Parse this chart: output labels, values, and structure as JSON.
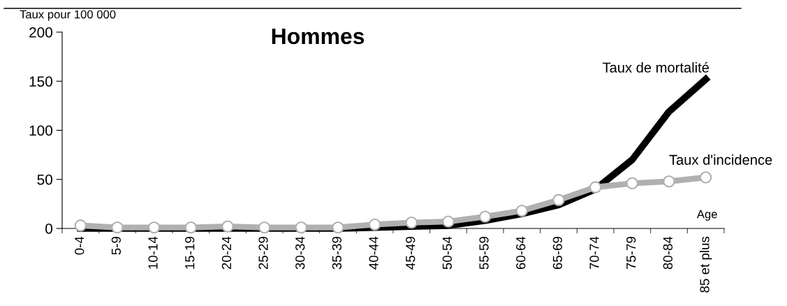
{
  "chart_data": {
    "type": "line",
    "title": "Hommes",
    "ylabel": "Taux pour 100 000",
    "xlabel": "Age",
    "categories": [
      "0-4",
      "5-9",
      "10-14",
      "15-19",
      "20-24",
      "25-29",
      "30-34",
      "35-39",
      "40-44",
      "45-49",
      "50-54",
      "55-59",
      "60-64",
      "65-69",
      "70-74",
      "75-79",
      "80-84",
      "85 et plus"
    ],
    "series": [
      {
        "name": "Taux de mortalité",
        "color": "#000000",
        "marker": "none",
        "values": [
          0,
          0,
          0,
          0,
          0,
          0,
          0,
          0,
          1,
          2,
          3,
          8,
          15,
          24,
          40,
          70,
          119,
          152
        ]
      },
      {
        "name": "Taux d'incidence",
        "color": "#b0b0b0",
        "marker": "circle",
        "values": [
          3,
          1,
          1,
          1,
          2,
          1,
          1,
          1,
          4,
          6,
          7,
          12,
          18,
          29,
          42,
          46,
          48,
          52
        ]
      }
    ],
    "ylim": [
      0,
      200
    ],
    "yticks": [
      0,
      50,
      100,
      150,
      200
    ],
    "grid": false,
    "legend": false,
    "line_style": "solid"
  }
}
